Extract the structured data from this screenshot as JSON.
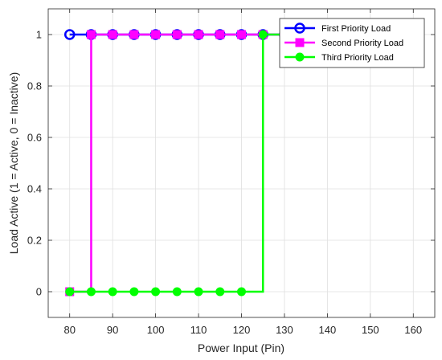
{
  "chart_data": {
    "type": "line",
    "xlabel": "Power Input (Pin)",
    "ylabel": "Load Active (1 = Active, 0 = Inactive)",
    "xlim": [
      75,
      165
    ],
    "ylim": [
      -0.1,
      1.1
    ],
    "xticks": [
      80,
      90,
      100,
      110,
      120,
      130,
      140,
      150,
      160
    ],
    "yticks": [
      0,
      0.2,
      0.4,
      0.6,
      0.8,
      1
    ],
    "ytick_labels": [
      "0",
      "0.2",
      "0.4",
      "0.6",
      "0.8",
      "1"
    ],
    "grid": true,
    "legend_position": "top-right",
    "step": "post",
    "x": [
      80,
      85,
      90,
      95,
      100,
      105,
      110,
      115,
      120,
      125,
      130,
      135,
      140,
      145,
      150,
      155,
      160
    ],
    "series": [
      {
        "name": "First Priority Load",
        "color": "#0000ff",
        "marker": "circle",
        "values": [
          1,
          1,
          1,
          1,
          1,
          1,
          1,
          1,
          1,
          1,
          1,
          1,
          1,
          1,
          1,
          1,
          1
        ]
      },
      {
        "name": "Second Priority Load",
        "color": "#ff00ff",
        "marker": "square",
        "values": [
          0,
          1,
          1,
          1,
          1,
          1,
          1,
          1,
          1,
          1,
          1,
          1,
          1,
          1,
          1,
          1,
          1
        ]
      },
      {
        "name": "Third Priority Load",
        "color": "#00ff00",
        "marker": "circle-filled",
        "values": [
          0,
          0,
          0,
          0,
          0,
          0,
          0,
          0,
          0,
          1,
          1,
          1,
          1,
          1,
          1,
          1,
          1
        ]
      }
    ]
  }
}
